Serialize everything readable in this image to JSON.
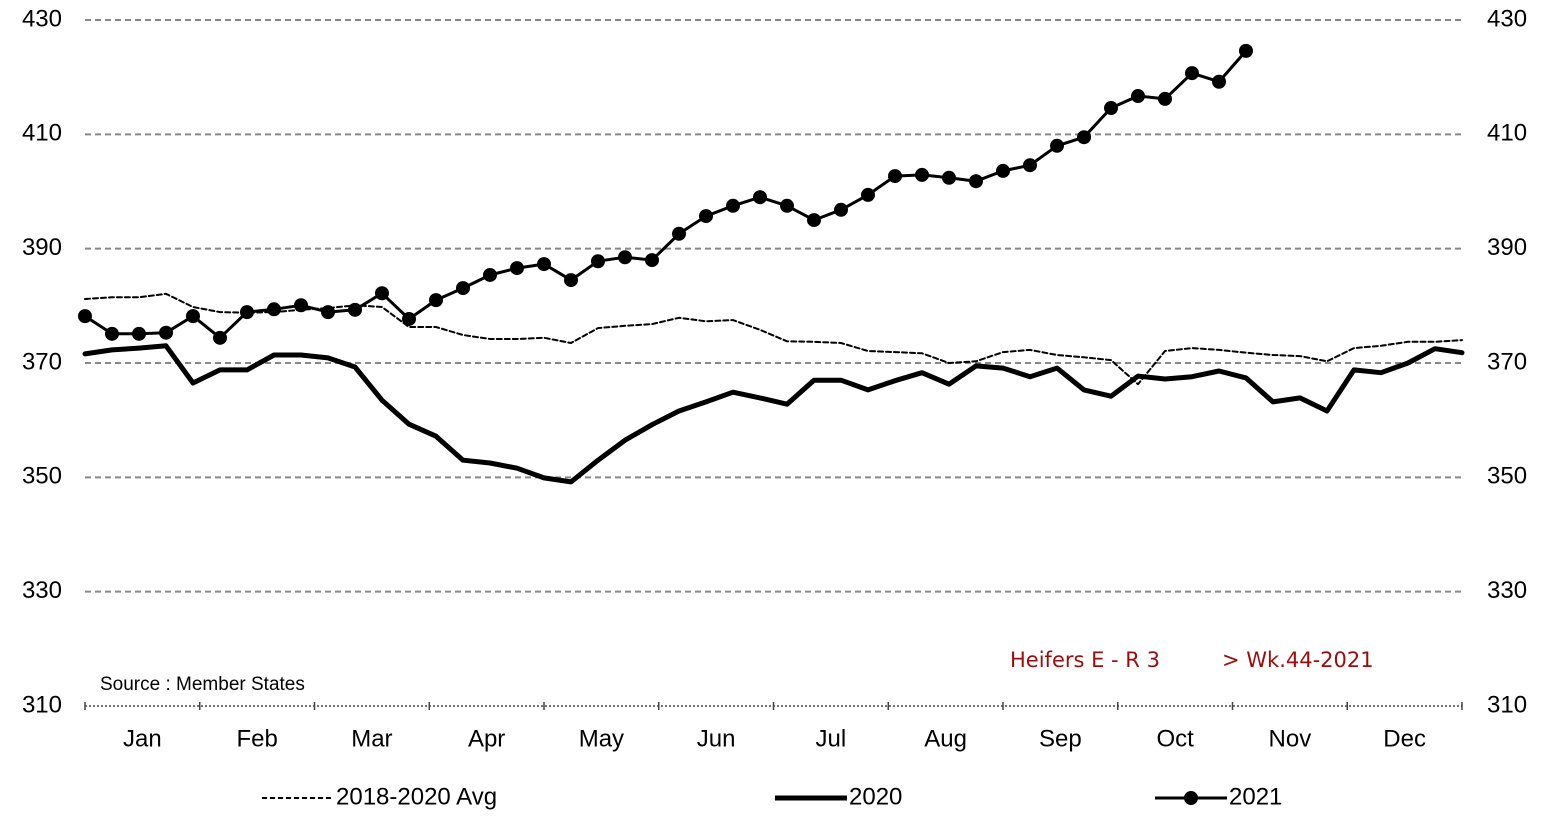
{
  "chart_data": {
    "type": "line",
    "x_labels": [
      "Jan",
      "Feb",
      "Mar",
      "Apr",
      "May",
      "Jun",
      "Jul",
      "Aug",
      "Sep",
      "Oct",
      "Nov",
      "Dec"
    ],
    "series": [
      {
        "name": "2018-2020 Avg",
        "color": "#000000",
        "line_style": "dashed",
        "values": [
          381.2,
          381.5,
          381.5,
          382.1,
          379.8,
          378.9,
          378.8,
          378.9,
          379.3,
          379.6,
          380.1,
          379.8,
          376.3,
          376.3,
          374.9,
          374.2,
          374.2,
          374.4,
          373.5,
          376.1,
          376.5,
          376.8,
          377.9,
          377.3,
          377.5,
          375.8,
          373.8,
          373.7,
          373.5,
          372.1,
          371.9,
          371.7,
          370.0,
          370.3,
          371.9,
          372.3,
          371.4,
          371.0,
          370.5,
          366.3,
          372.1,
          372.6,
          372.3,
          371.8,
          371.4,
          371.2,
          370.3,
          372.6,
          373.0,
          373.7,
          373.7,
          374.0
        ]
      },
      {
        "name": "2020",
        "color": "#000000",
        "line_style": "bold",
        "values": [
          371.6,
          372.3,
          372.6,
          373.0,
          366.5,
          368.8,
          368.8,
          371.4,
          371.4,
          370.9,
          369.3,
          363.5,
          359.3,
          357.2,
          353.0,
          352.5,
          351.6,
          349.9,
          349.2,
          353.0,
          356.5,
          359.2,
          361.6,
          363.2,
          364.9,
          363.9,
          362.8,
          367.0,
          367.0,
          365.3,
          366.9,
          368.3,
          366.3,
          369.5,
          369.1,
          367.6,
          369.1,
          365.3,
          364.2,
          367.7,
          367.2,
          367.6,
          368.6,
          367.4,
          363.2,
          363.9,
          361.6,
          368.8,
          368.3,
          370.0,
          372.5,
          371.8
        ]
      },
      {
        "name": "2021",
        "color": "#000000",
        "line_style": "solid",
        "marker": "circle",
        "values": [
          378.2,
          375.1,
          375.1,
          375.3,
          378.2,
          374.4,
          378.9,
          379.4,
          380.1,
          378.9,
          379.3,
          382.2,
          377.7,
          381.0,
          383.1,
          385.4,
          386.6,
          387.3,
          384.5,
          387.8,
          388.5,
          388.0,
          392.6,
          395.7,
          397.5,
          399.0,
          397.5,
          395.0,
          396.8,
          399.4,
          402.7,
          402.9,
          402.4,
          401.8,
          403.6,
          404.6,
          408.0,
          409.5,
          414.6,
          416.7,
          416.2,
          420.7,
          419.2,
          424.6
        ]
      }
    ],
    "ylim": [
      310,
      430
    ],
    "yticks": [
      310,
      330,
      350,
      370,
      390,
      410,
      430
    ],
    "grid": true,
    "annotations": [
      "Source : Member States",
      "Heifers E - R 3",
      "> Wk.44-2021"
    ]
  }
}
